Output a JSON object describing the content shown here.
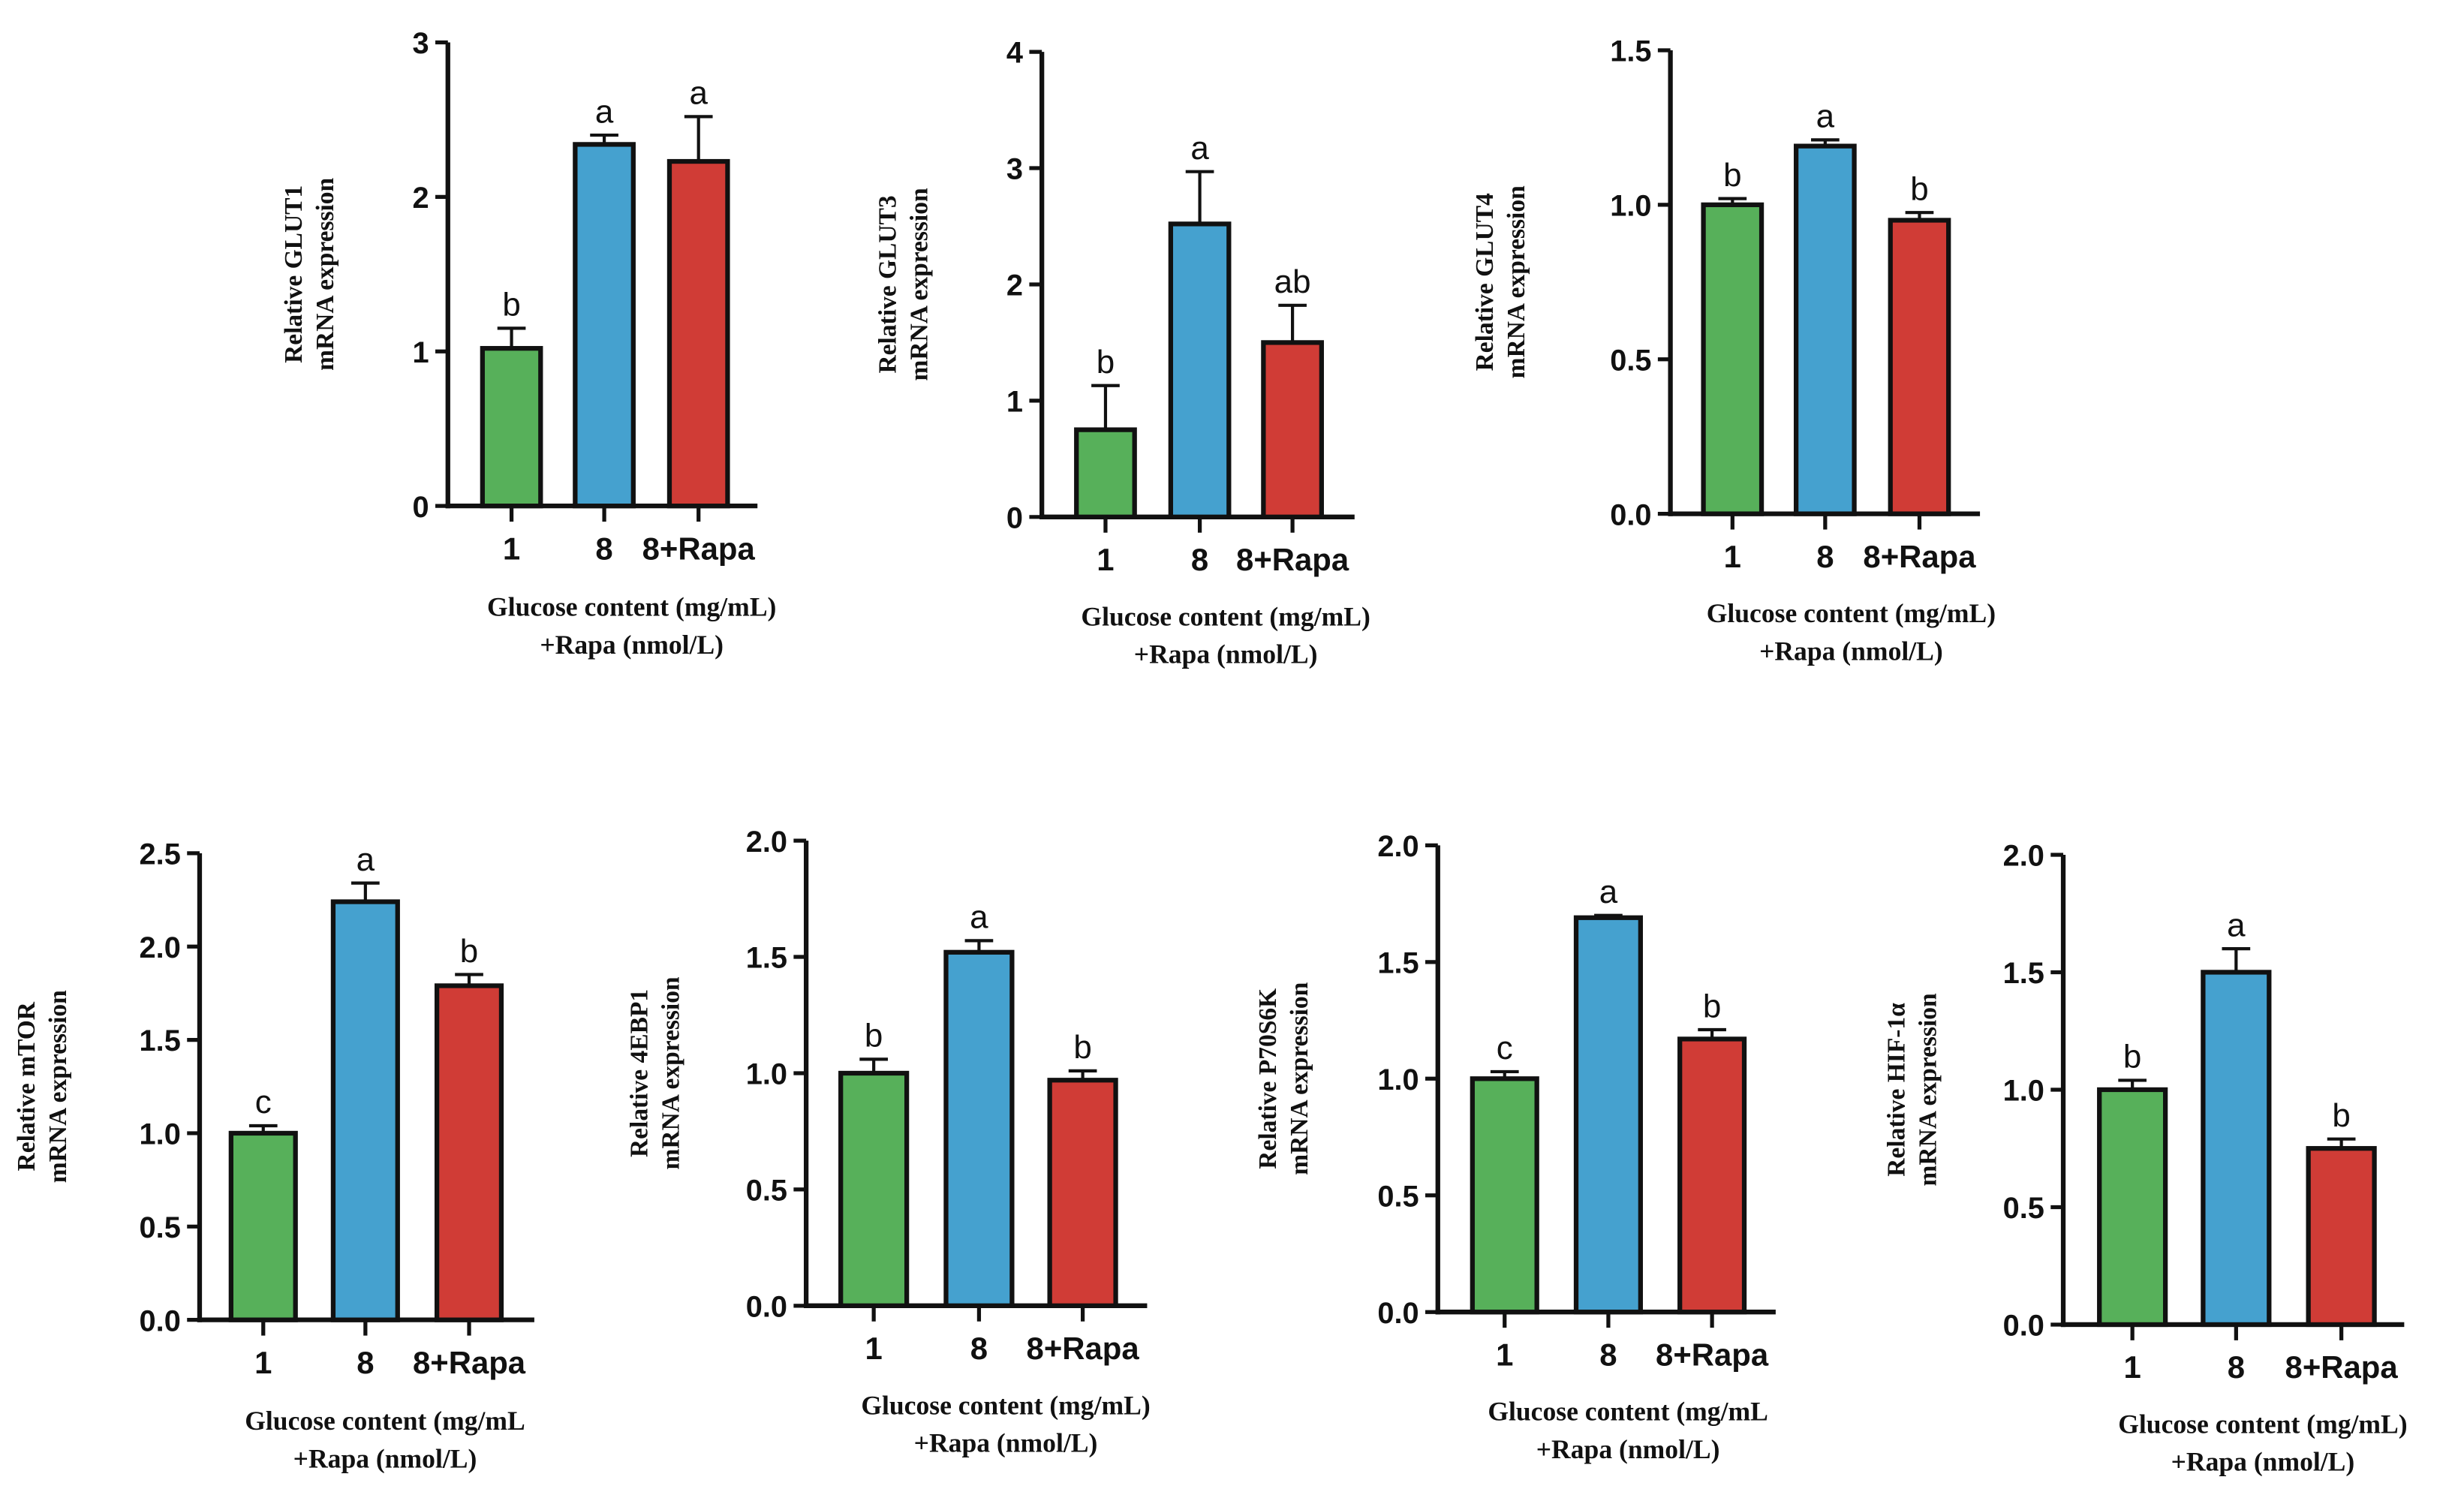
{
  "colors": {
    "1": "#57b05a",
    "8": "#45a1cf",
    "8+Rapa": "#d03c36",
    "axis": "#111111"
  },
  "chart_data": [
    {
      "type": "bar",
      "title": "",
      "categories": [
        "1",
        "8",
        "8+Rapa"
      ],
      "values": [
        1.02,
        2.34,
        2.23
      ],
      "errors": [
        0.13,
        0.06,
        0.29
      ],
      "letters": [
        "b",
        "a",
        "a"
      ],
      "ylabel": [
        "Relative GLUT1",
        "mRNA expression"
      ],
      "xlabel": [
        "Glucose content (mg/mL)",
        "+Rapa (nmol/L)"
      ],
      "ylim": [
        0,
        3
      ],
      "yticks": [
        "0",
        "1",
        "2",
        "3"
      ]
    },
    {
      "type": "bar",
      "title": "",
      "categories": [
        "1",
        "8",
        "8+Rapa"
      ],
      "values": [
        0.75,
        2.52,
        1.5
      ],
      "errors": [
        0.38,
        0.45,
        0.32
      ],
      "letters": [
        "b",
        "a",
        "ab"
      ],
      "ylabel": [
        "Relative GLUT3",
        "mRNA expression"
      ],
      "xlabel": [
        "Glucose content (mg/mL)",
        "+Rapa (nmol/L)"
      ],
      "ylim": [
        0,
        4
      ],
      "yticks": [
        "0",
        "1",
        "2",
        "3",
        "4"
      ]
    },
    {
      "type": "bar",
      "title": "",
      "categories": [
        "1",
        "8",
        "8+Rapa"
      ],
      "values": [
        1.0,
        1.19,
        0.95
      ],
      "errors": [
        0.02,
        0.02,
        0.025
      ],
      "letters": [
        "b",
        "a",
        "b"
      ],
      "ylabel": [
        "Relative GLUT4",
        "mRNA expression"
      ],
      "xlabel": [
        "Glucose content (mg/mL)",
        "+Rapa (nmol/L)"
      ],
      "ylim": [
        0,
        1.5
      ],
      "yticks": [
        "0.0",
        "0.5",
        "1.0",
        "1.5"
      ]
    },
    {
      "type": "bar",
      "title": "",
      "categories": [
        "1",
        "8",
        "8+Rapa"
      ],
      "values": [
        1.0,
        2.24,
        1.79
      ],
      "errors": [
        0.04,
        0.1,
        0.06
      ],
      "letters": [
        "c",
        "a",
        "b"
      ],
      "ylabel": [
        "Relative mTOR",
        "mRNA expression"
      ],
      "xlabel": [
        "Glucose content (mg/mL",
        "+Rapa (nmol/L)"
      ],
      "ylim": [
        0,
        2.5
      ],
      "yticks": [
        "0.0",
        "0.5",
        "1.0",
        "1.5",
        "2.0",
        "2.5"
      ]
    },
    {
      "type": "bar",
      "title": "",
      "categories": [
        "1",
        "8",
        "8+Rapa"
      ],
      "values": [
        1.0,
        1.52,
        0.97
      ],
      "errors": [
        0.06,
        0.05,
        0.04
      ],
      "letters": [
        "b",
        "a",
        "b"
      ],
      "ylabel": [
        "Relative 4EBP1",
        "mRNA expression"
      ],
      "xlabel": [
        "Glucose content (mg/mL)",
        "+Rapa (nmol/L)"
      ],
      "ylim": [
        0,
        2.0
      ],
      "yticks": [
        "0.0",
        "0.5",
        "1.0",
        "1.5",
        "2.0"
      ]
    },
    {
      "type": "bar",
      "title": "",
      "categories": [
        "1",
        "8",
        "8+Rapa"
      ],
      "values": [
        1.0,
        1.69,
        1.17
      ],
      "errors": [
        0.03,
        0.01,
        0.04
      ],
      "letters": [
        "c",
        "a",
        "b"
      ],
      "ylabel": [
        "Relative P70S6K",
        "mRNA expression"
      ],
      "xlabel": [
        "Glucose content (mg/mL",
        "+Rapa (nmol/L)"
      ],
      "ylim": [
        0,
        2.0
      ],
      "yticks": [
        "0.0",
        "0.5",
        "1.0",
        "1.5",
        "2.0"
      ]
    },
    {
      "type": "bar",
      "title": "",
      "categories": [
        "1",
        "8",
        "8+Rapa"
      ],
      "values": [
        1.0,
        1.5,
        0.75
      ],
      "errors": [
        0.04,
        0.1,
        0.04
      ],
      "letters": [
        "b",
        "a",
        "b"
      ],
      "ylabel": [
        "Relative HIF-1α",
        "mRNA expression"
      ],
      "xlabel": [
        "Glucose content (mg/mL)",
        "+Rapa (nmol/L)"
      ],
      "ylim": [
        0,
        2.0
      ],
      "yticks": [
        "0.0",
        "0.5",
        "1.0",
        "1.5",
        "2.0"
      ]
    }
  ]
}
